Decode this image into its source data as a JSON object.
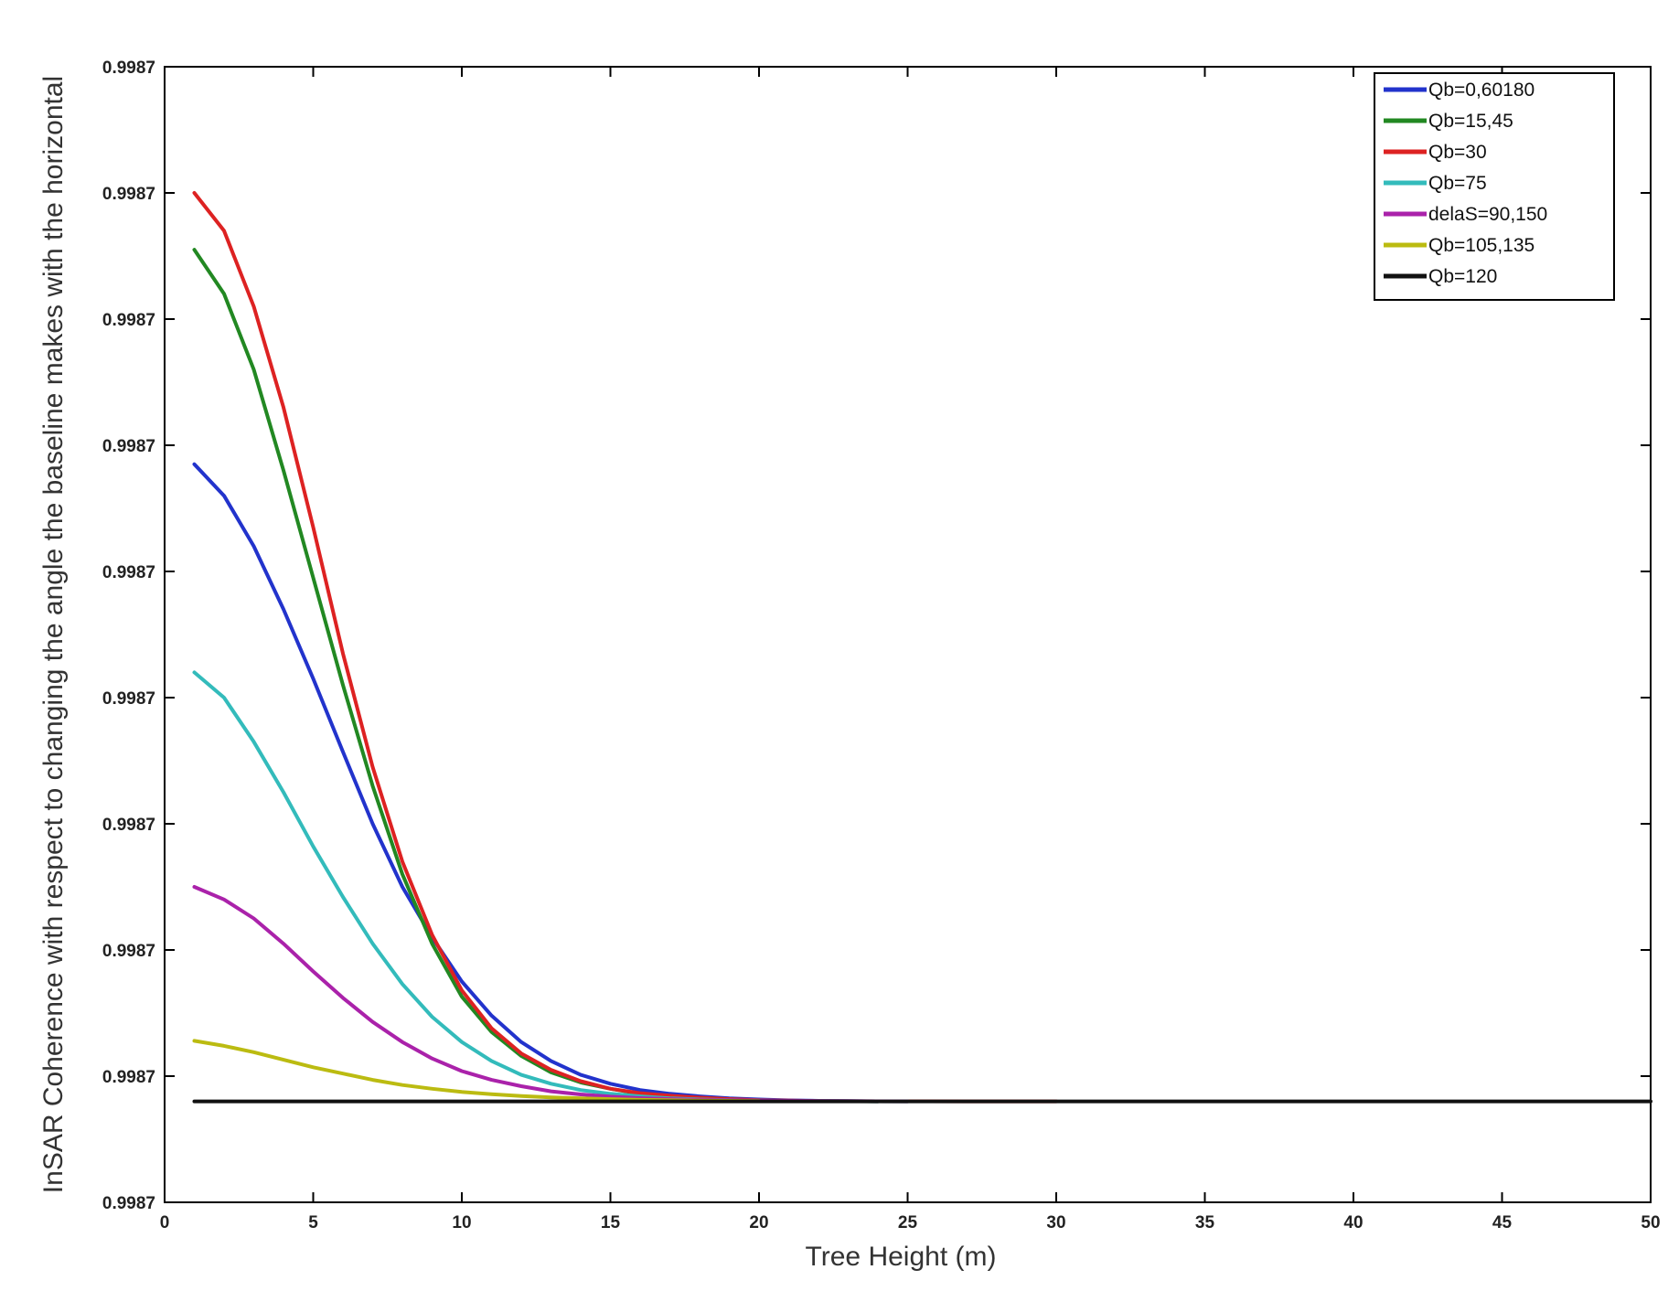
{
  "chart_data": {
    "type": "line",
    "xlabel": "Tree Height (m)",
    "ylabel": "InSAR Coherence with respect to changing the angle the baseline makes with the horizontal",
    "xlim": [
      0,
      50
    ],
    "ylim": [
      0,
      9
    ],
    "x_ticks": [
      0,
      5,
      10,
      15,
      20,
      25,
      30,
      35,
      40,
      45,
      50
    ],
    "y_ticks": [
      0,
      1,
      2,
      3,
      4,
      5,
      6,
      7,
      8,
      9
    ],
    "y_tick_labels": [
      "0.9987",
      "0.9987",
      "0.9987",
      "0.9987",
      "0.9987",
      "0.9987",
      "0.9987",
      "0.9987",
      "0.9987",
      "0.9987"
    ],
    "grid": false,
    "legend_position": "top-right",
    "baseline_value": 0.8,
    "series": [
      {
        "name": "Qb=0,60180",
        "color": "#2233cc",
        "x": [
          1,
          2,
          3,
          4,
          5,
          6,
          7,
          8,
          9,
          10,
          11,
          12,
          13,
          14,
          15,
          16,
          17,
          18,
          19,
          20,
          21,
          22,
          24
        ],
        "y": [
          5.85,
          5.6,
          5.2,
          4.7,
          4.15,
          3.57,
          3.0,
          2.5,
          2.1,
          1.75,
          1.48,
          1.27,
          1.12,
          1.01,
          0.94,
          0.89,
          0.86,
          0.84,
          0.825,
          0.815,
          0.808,
          0.804,
          0.8
        ]
      },
      {
        "name": "Qb=15,45",
        "color": "#228822",
        "x": [
          1,
          2,
          3,
          4,
          5,
          6,
          7,
          8,
          9,
          10,
          11,
          12,
          13,
          14,
          15,
          16,
          17,
          18,
          19,
          20,
          21,
          22,
          24
        ],
        "y": [
          7.55,
          7.2,
          6.6,
          5.8,
          4.95,
          4.1,
          3.3,
          2.6,
          2.05,
          1.63,
          1.35,
          1.16,
          1.03,
          0.95,
          0.9,
          0.86,
          0.84,
          0.825,
          0.815,
          0.808,
          0.804,
          0.802,
          0.8
        ]
      },
      {
        "name": "Qb=30",
        "color": "#dd2222",
        "x": [
          1,
          2,
          3,
          4,
          5,
          6,
          7,
          8,
          9,
          10,
          11,
          12,
          13,
          14,
          15,
          16,
          17,
          18,
          19,
          20,
          21,
          22,
          24,
          27,
          30
        ],
        "y": [
          8.0,
          7.7,
          7.1,
          6.3,
          5.35,
          4.35,
          3.45,
          2.7,
          2.12,
          1.68,
          1.38,
          1.18,
          1.05,
          0.96,
          0.9,
          0.865,
          0.845,
          0.83,
          0.818,
          0.81,
          0.806,
          0.803,
          0.801,
          0.8,
          0.8
        ]
      },
      {
        "name": "Qb=75",
        "color": "#33bbbb",
        "x": [
          1,
          2,
          3,
          4,
          5,
          6,
          7,
          8,
          9,
          10,
          11,
          12,
          13,
          14,
          15,
          16,
          17,
          18,
          19,
          20,
          22,
          25
        ],
        "y": [
          4.2,
          4.0,
          3.65,
          3.25,
          2.82,
          2.42,
          2.05,
          1.73,
          1.47,
          1.27,
          1.12,
          1.01,
          0.94,
          0.89,
          0.86,
          0.84,
          0.825,
          0.815,
          0.81,
          0.806,
          0.802,
          0.8
        ]
      },
      {
        "name": "delaS=90,150",
        "color": "#aa22aa",
        "x": [
          1,
          2,
          3,
          4,
          5,
          6,
          7,
          8,
          9,
          10,
          11,
          12,
          13,
          14,
          15,
          16,
          17,
          18,
          20,
          22,
          25
        ],
        "y": [
          2.5,
          2.4,
          2.25,
          2.05,
          1.83,
          1.62,
          1.43,
          1.27,
          1.14,
          1.04,
          0.97,
          0.92,
          0.88,
          0.855,
          0.838,
          0.826,
          0.818,
          0.812,
          0.806,
          0.803,
          0.8
        ]
      },
      {
        "name": "Qb=105,135",
        "color": "#bbbb11",
        "x": [
          1,
          2,
          3,
          4,
          5,
          6,
          7,
          8,
          9,
          10,
          11,
          12,
          13,
          14,
          15,
          16,
          18,
          20
        ],
        "y": [
          1.28,
          1.24,
          1.19,
          1.13,
          1.07,
          1.02,
          0.97,
          0.93,
          0.9,
          0.875,
          0.857,
          0.843,
          0.832,
          0.824,
          0.818,
          0.812,
          0.806,
          0.802
        ]
      },
      {
        "name": "Qb=120",
        "color": "#111111",
        "x": [
          1,
          50
        ],
        "y": [
          0.8,
          0.8
        ]
      }
    ]
  }
}
